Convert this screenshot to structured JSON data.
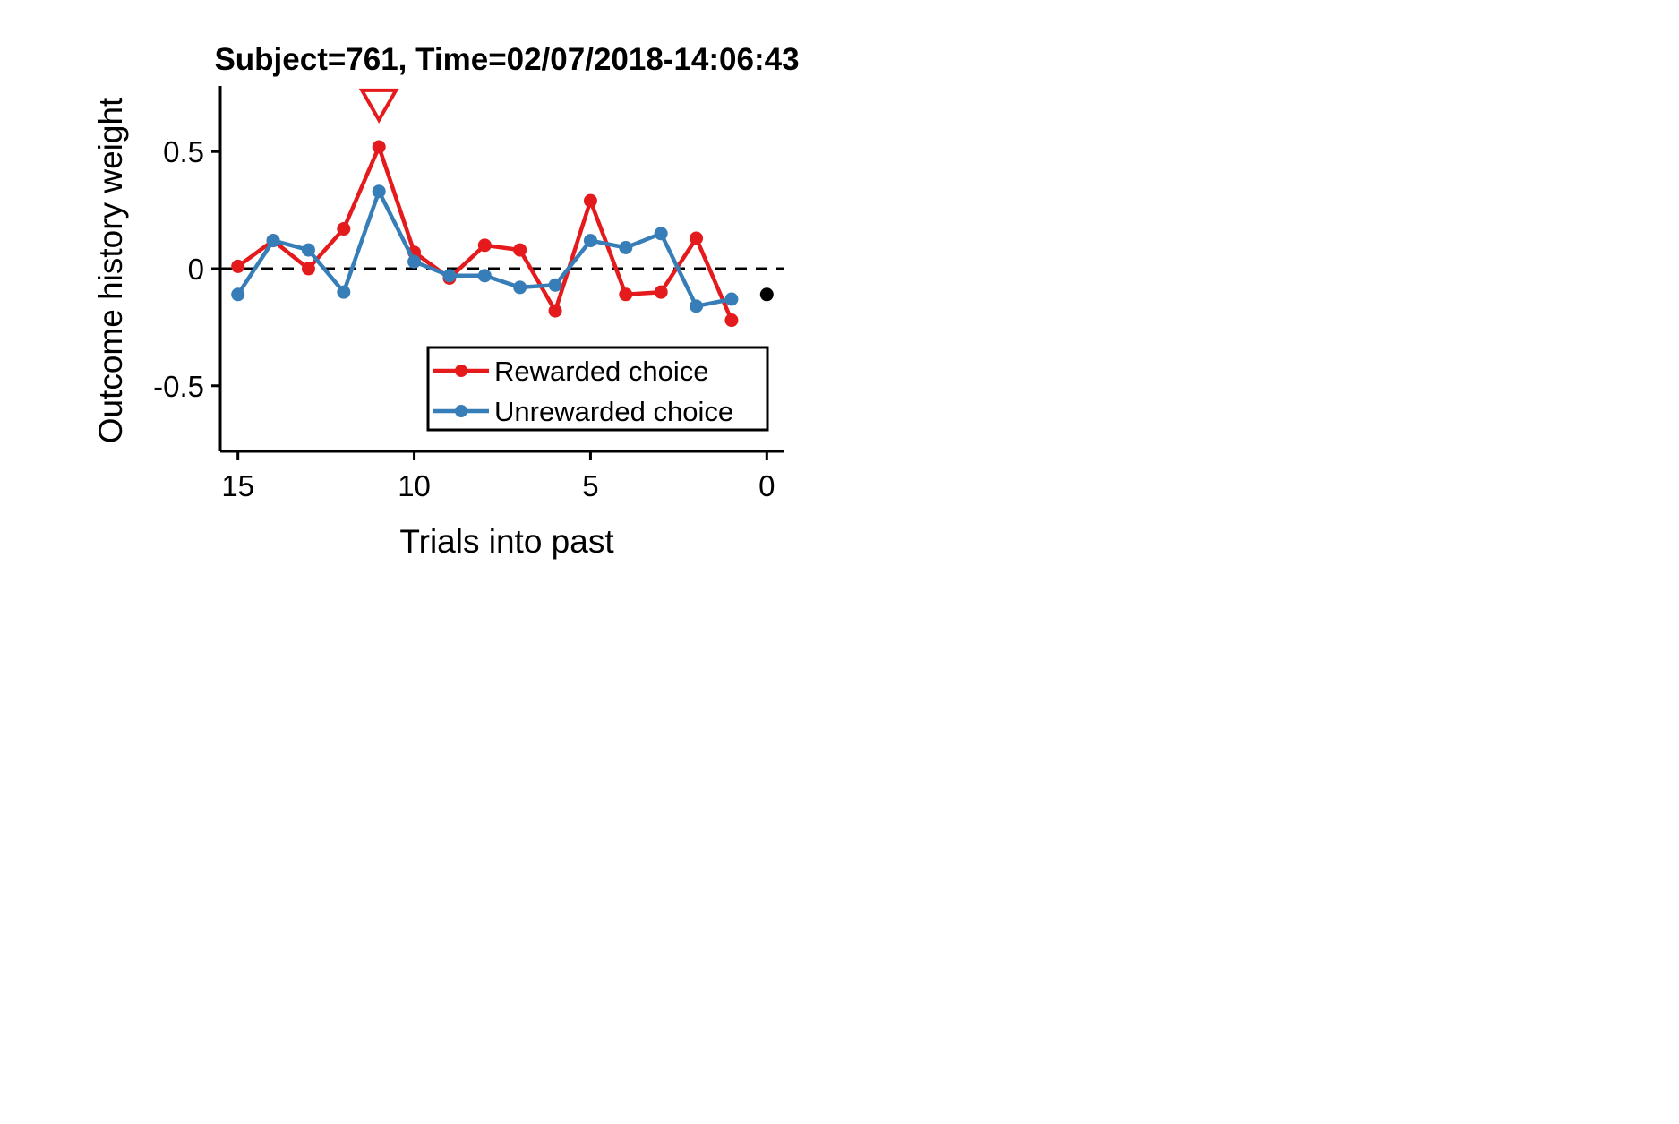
{
  "chart_data": {
    "type": "line",
    "title": "Subject=761, Time=02/07/2018-14:06:43",
    "xlabel": "Trials into past",
    "ylabel": "Outcome history weight",
    "xlim": [
      15.5,
      -0.5
    ],
    "ylim": [
      -0.78,
      0.78
    ],
    "x_ticks": [
      15,
      10,
      5,
      0
    ],
    "x_tick_labels": [
      "15",
      "10",
      "5",
      "0"
    ],
    "y_ticks": [
      0.5,
      0,
      -0.5
    ],
    "y_tick_labels": [
      "0.5",
      "0",
      "-0.5"
    ],
    "reference_line": {
      "y": 0,
      "style": "dashed",
      "color": "#000000"
    },
    "legend_position": "lower-right",
    "series": [
      {
        "name": "Rewarded choice",
        "color": "#e41a1c",
        "x": [
          15,
          14,
          13,
          12,
          11,
          10,
          9,
          8,
          7,
          6,
          5,
          4,
          3,
          2,
          1
        ],
        "values": [
          0.01,
          0.12,
          0.0,
          0.17,
          0.52,
          0.07,
          -0.04,
          0.1,
          0.08,
          -0.18,
          0.29,
          -0.11,
          -0.1,
          0.13,
          -0.22
        ]
      },
      {
        "name": "Unrewarded choice",
        "color": "#377eb8",
        "x": [
          15,
          14,
          13,
          12,
          11,
          10,
          9,
          8,
          7,
          6,
          5,
          4,
          3,
          2,
          1
        ],
        "values": [
          -0.11,
          0.12,
          0.08,
          -0.1,
          0.33,
          0.03,
          -0.03,
          -0.03,
          -0.08,
          -0.07,
          0.12,
          0.09,
          0.15,
          -0.16,
          -0.13
        ]
      }
    ],
    "bias_point": {
      "x": 0,
      "y": -0.11,
      "color": "#000000"
    },
    "marker": {
      "shape": "open-down-triangle",
      "x": 11,
      "y": 0.7,
      "color": "#e41a1c"
    }
  }
}
